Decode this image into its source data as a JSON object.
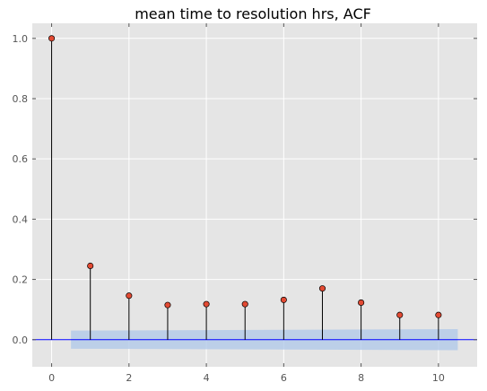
{
  "chart_data": {
    "type": "stem",
    "title": "mean time to resolution hrs, ACF",
    "xlabel": "",
    "ylabel": "",
    "xlim": [
      -0.5,
      11
    ],
    "ylim": [
      -0.09,
      1.05
    ],
    "xticks": [
      0,
      2,
      4,
      6,
      8,
      10
    ],
    "yticks": [
      0.0,
      0.2,
      0.4,
      0.6,
      0.8,
      1.0
    ],
    "xtick_labels": [
      "0",
      "2",
      "4",
      "6",
      "8",
      "10"
    ],
    "ytick_labels": [
      "0.0",
      "0.2",
      "0.4",
      "0.6",
      "0.8",
      "1.0"
    ],
    "grid": true,
    "x": [
      0,
      1,
      2,
      3,
      4,
      5,
      6,
      7,
      8,
      9,
      10
    ],
    "values": [
      1.0,
      0.245,
      0.146,
      0.115,
      0.118,
      0.118,
      0.132,
      0.17,
      0.123,
      0.082,
      0.082
    ],
    "confidence_band": {
      "x": [
        0.5,
        10.5
      ],
      "lower": [
        -0.03,
        -0.035
      ],
      "upper": [
        0.03,
        0.035
      ]
    },
    "colors": {
      "background": "#e5e5e5",
      "grid": "#ffffff",
      "stem": "#000000",
      "marker": "#e24a33",
      "zero_line": "#0000ff",
      "band": "#aec7e8"
    }
  }
}
